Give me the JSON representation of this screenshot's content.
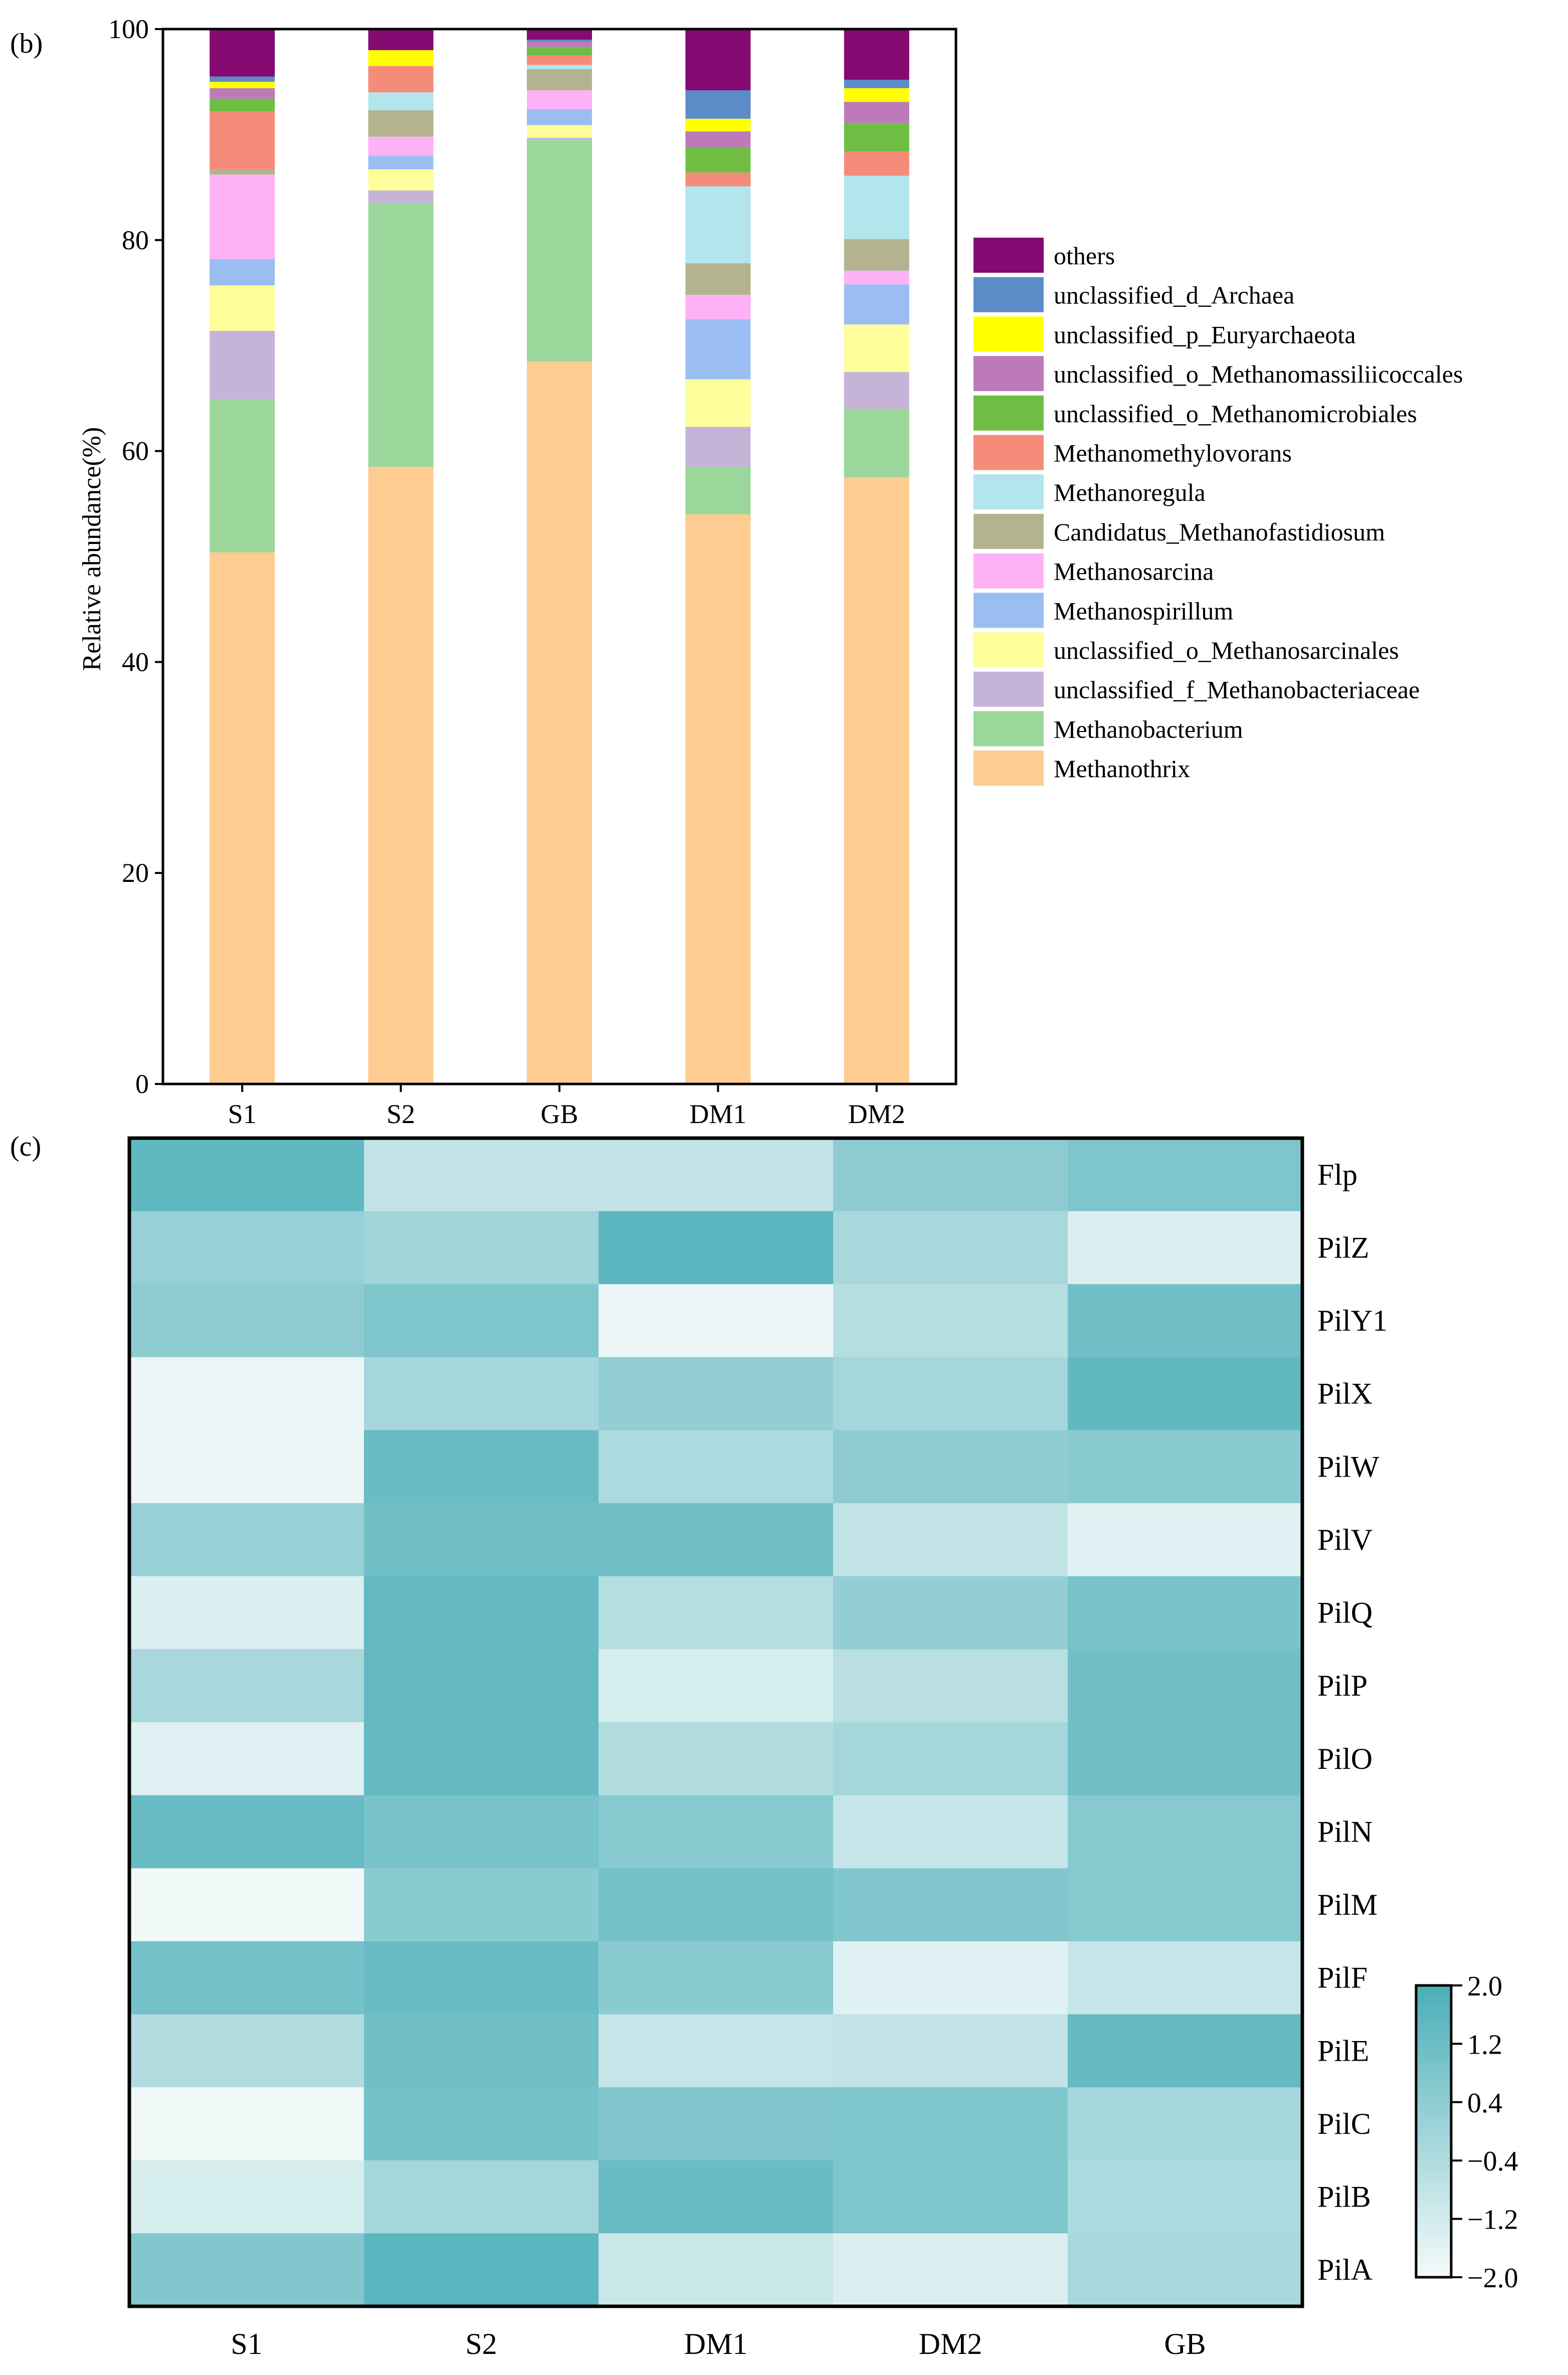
{
  "chart_data": [
    {
      "type": "bar",
      "stacked": true,
      "panel_label": "(b)",
      "categories": [
        "S1",
        "S2",
        "GB",
        "DM1",
        "DM2"
      ],
      "ylabel": "Relative abundance(%)",
      "ylim": [
        0,
        100
      ],
      "yticks": [
        0,
        20,
        40,
        60,
        80,
        100
      ],
      "legend_position": "right",
      "series": [
        {
          "name": "Methanothrix",
          "color": "#FECB91",
          "values": [
            50.4,
            58.5,
            68.5,
            54.0,
            57.5
          ]
        },
        {
          "name": "Methanobacterium",
          "color": "#9BD79B",
          "values": [
            14.5,
            25.0,
            21.0,
            4.5,
            6.5
          ]
        },
        {
          "name": "unclassified_f_Methanobacteriaceae",
          "color": "#C6B4D8",
          "values": [
            6.5,
            1.2,
            0.2,
            3.8,
            3.5
          ]
        },
        {
          "name": "unclassified_o_Methanosarcinales",
          "color": "#FEFE9A",
          "values": [
            4.3,
            2.0,
            1.2,
            4.5,
            4.5
          ]
        },
        {
          "name": "Methanospirillum",
          "color": "#9BBEF2",
          "values": [
            2.5,
            1.3,
            1.5,
            5.7,
            3.8
          ]
        },
        {
          "name": "Methanosarcina",
          "color": "#FEB2F6",
          "values": [
            8.0,
            1.8,
            1.8,
            2.3,
            1.3
          ]
        },
        {
          "name": "Candidatus_Methanofastidiosum",
          "color": "#B3B48F",
          "values": [
            0.5,
            2.5,
            2.0,
            3.0,
            3.0
          ]
        },
        {
          "name": "Methanoregula",
          "color": "#B2E5EC",
          "values": [
            0.0,
            1.7,
            0.4,
            7.3,
            6.0
          ]
        },
        {
          "name": "Methanomethylovorans",
          "color": "#F58C79",
          "values": [
            5.5,
            2.5,
            0.9,
            1.3,
            2.3
          ]
        },
        {
          "name": "unclassified_o_Methanomicrobiales",
          "color": "#6FBE43",
          "values": [
            1.2,
            0.0,
            0.8,
            2.4,
            2.7
          ]
        },
        {
          "name": "unclassified_o_Methanomassiliicoccales",
          "color": "#BD7AB8",
          "values": [
            1.0,
            0.0,
            0.5,
            1.5,
            2.0
          ]
        },
        {
          "name": "unclassified_p_Euryarchaeota",
          "color": "#FFFF00",
          "values": [
            0.6,
            1.5,
            0.0,
            1.2,
            1.3
          ]
        },
        {
          "name": "unclassified_d_Archaea",
          "color": "#5B8CC8",
          "values": [
            0.5,
            0.0,
            0.2,
            2.7,
            0.8
          ]
        },
        {
          "name": "others",
          "color": "#850A72",
          "values": [
            4.5,
            2.0,
            1.0,
            5.8,
            4.8
          ]
        }
      ]
    },
    {
      "type": "heatmap",
      "panel_label": "(c)",
      "x_categories": [
        "S1",
        "S2",
        "DM1",
        "DM2",
        "GB"
      ],
      "y_categories": [
        "Flp",
        "PilZ",
        "PilY1",
        "PilX",
        "PilW",
        "PilV",
        "PilQ",
        "PilP",
        "PilO",
        "PilN",
        "PilM",
        "PilF",
        "PilE",
        "PilC",
        "PilB",
        "PilA"
      ],
      "values": [
        [
          1.5,
          -0.8,
          -0.8,
          0.4,
          0.8
        ],
        [
          0.2,
          0.0,
          1.6,
          -0.2,
          -1.4
        ],
        [
          0.4,
          0.8,
          -1.8,
          -0.5,
          1.1
        ],
        [
          -1.8,
          -0.1,
          0.3,
          -0.1,
          1.5
        ],
        [
          -1.8,
          1.3,
          -0.3,
          0.4,
          0.5
        ],
        [
          0.2,
          1.1,
          1.1,
          -0.8,
          -1.5
        ],
        [
          -1.4,
          1.4,
          -0.5,
          0.3,
          0.9
        ],
        [
          -0.2,
          1.4,
          -1.3,
          -0.6,
          1.1
        ],
        [
          -1.5,
          1.4,
          -0.4,
          -0.1,
          1.1
        ],
        [
          1.3,
          0.9,
          0.6,
          -0.9,
          0.6
        ],
        [
          -1.9,
          0.5,
          1.0,
          0.7,
          0.6
        ],
        [
          1.0,
          1.3,
          0.5,
          -1.5,
          -0.9
        ],
        [
          -0.4,
          1.1,
          -0.9,
          -0.8,
          1.4
        ],
        [
          -1.9,
          1.0,
          0.7,
          0.8,
          -0.1
        ],
        [
          -1.3,
          -0.1,
          1.3,
          0.8,
          -0.3
        ],
        [
          0.7,
          1.6,
          -1.0,
          -1.4,
          -0.2
        ]
      ],
      "colorbar": {
        "range": [
          -2.0,
          2.0
        ],
        "ticks": [
          "2.0",
          "1.2",
          "0.4",
          "−0.4",
          "−1.2",
          "−2.0"
        ],
        "low_color": "#F4FAFA",
        "high_color": "#4BAEB8"
      }
    }
  ]
}
